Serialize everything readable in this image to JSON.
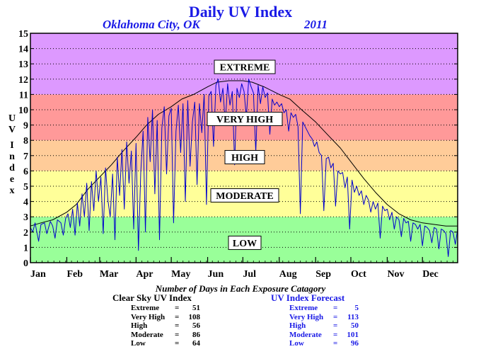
{
  "header": {
    "title": "Daily UV Index",
    "location": "Oklahoma City, OK",
    "year": "2011"
  },
  "y_axis_label": [
    "U",
    "V",
    "I",
    "n",
    "d",
    "e",
    "x"
  ],
  "section_title": "Number of Days in Each Exposure Catagory",
  "clear_sky": {
    "title": "Clear Sky UV Index",
    "rows": [
      {
        "label": "Extreme",
        "value": "51"
      },
      {
        "label": "Very High",
        "value": "108"
      },
      {
        "label": "High",
        "value": "56"
      },
      {
        "label": "Moderate",
        "value": "86"
      },
      {
        "label": "Low",
        "value": "64"
      }
    ]
  },
  "forecast": {
    "title": "UV Index Forecast",
    "rows": [
      {
        "label": "Extreme",
        "value": "5"
      },
      {
        "label": "Very High",
        "value": "113"
      },
      {
        "label": "High",
        "value": "50"
      },
      {
        "label": "Moderate",
        "value": "101"
      },
      {
        "label": "Low",
        "value": "96"
      }
    ]
  },
  "colors": {
    "low": "#99ff99",
    "moderate": "#ffff99",
    "high": "#ffcc99",
    "very_high": "#ff9999",
    "extreme": "#dd99ff",
    "clear_sky_line": "#000000",
    "forecast_line": "#0000cc",
    "title_color": "#1a1ae6"
  },
  "chart_data": {
    "type": "line",
    "title": "Daily UV Index",
    "xlabel": "",
    "ylabel": "UV Index",
    "ylim": [
      0,
      15
    ],
    "xlim": [
      1,
      365
    ],
    "yticks": [
      0,
      1,
      2,
      3,
      4,
      5,
      6,
      7,
      8,
      9,
      10,
      11,
      12,
      13,
      14,
      15
    ],
    "months": [
      {
        "label": "Jan",
        "start_day": 1
      },
      {
        "label": "Feb",
        "start_day": 32
      },
      {
        "label": "Mar",
        "start_day": 60
      },
      {
        "label": "Apr",
        "start_day": 91
      },
      {
        "label": "May",
        "start_day": 121
      },
      {
        "label": "Jun",
        "start_day": 152
      },
      {
        "label": "Jul",
        "start_day": 182
      },
      {
        "label": "Aug",
        "start_day": 213
      },
      {
        "label": "Sep",
        "start_day": 244
      },
      {
        "label": "Oct",
        "start_day": 274
      },
      {
        "label": "Nov",
        "start_day": 305
      },
      {
        "label": "Dec",
        "start_day": 335
      }
    ],
    "grid": true,
    "bands": [
      {
        "name": "LOW",
        "from": 0,
        "to": 3
      },
      {
        "name": "MODERATE",
        "from": 3,
        "to": 6
      },
      {
        "name": "HIGH",
        "from": 6,
        "to": 8
      },
      {
        "name": "VERY HIGH",
        "from": 8,
        "to": 11
      },
      {
        "name": "EXTREME",
        "from": 11,
        "to": 15
      }
    ],
    "band_labels": [
      {
        "text": "EXTREME",
        "y": 12.8
      },
      {
        "text": "VERY HIGH",
        "y": 9.4
      },
      {
        "text": "HIGH",
        "y": 6.9
      },
      {
        "text": "MODERATE",
        "y": 4.4
      },
      {
        "text": "LOW",
        "y": 1.3
      }
    ],
    "series": [
      {
        "name": "Clear Sky UV Index",
        "color": "#000000",
        "points": [
          [
            1,
            2.4
          ],
          [
            10,
            2.6
          ],
          [
            20,
            2.8
          ],
          [
            32,
            3.3
          ],
          [
            40,
            3.8
          ],
          [
            50,
            4.8
          ],
          [
            60,
            5.6
          ],
          [
            70,
            6.4
          ],
          [
            80,
            7.3
          ],
          [
            91,
            8.2
          ],
          [
            100,
            9.0
          ],
          [
            110,
            9.7
          ],
          [
            121,
            10.2
          ],
          [
            130,
            10.7
          ],
          [
            140,
            11.0
          ],
          [
            152,
            11.5
          ],
          [
            160,
            11.8
          ],
          [
            170,
            11.9
          ],
          [
            182,
            11.9
          ],
          [
            190,
            11.8
          ],
          [
            200,
            11.5
          ],
          [
            213,
            11.0
          ],
          [
            222,
            10.7
          ],
          [
            232,
            10.0
          ],
          [
            244,
            9.2
          ],
          [
            255,
            8.3
          ],
          [
            265,
            7.5
          ],
          [
            274,
            6.6
          ],
          [
            285,
            5.5
          ],
          [
            295,
            4.6
          ],
          [
            305,
            3.8
          ],
          [
            315,
            3.2
          ],
          [
            325,
            2.8
          ],
          [
            335,
            2.6
          ],
          [
            345,
            2.5
          ],
          [
            355,
            2.4
          ],
          [
            365,
            2.4
          ]
        ]
      },
      {
        "name": "UV Index Forecast",
        "color": "#0000cc",
        "points": [
          [
            1,
            2.3
          ],
          [
            3,
            2.0
          ],
          [
            5,
            2.6
          ],
          [
            8,
            1.4
          ],
          [
            10,
            2.5
          ],
          [
            13,
            2.6
          ],
          [
            15,
            1.9
          ],
          [
            18,
            2.7
          ],
          [
            20,
            2.4
          ],
          [
            22,
            1.6
          ],
          [
            24,
            2.8
          ],
          [
            27,
            2.6
          ],
          [
            29,
            1.8
          ],
          [
            31,
            2.9
          ],
          [
            33,
            3.2
          ],
          [
            35,
            2.3
          ],
          [
            37,
            3.5
          ],
          [
            39,
            1.8
          ],
          [
            41,
            3.9
          ],
          [
            43,
            2.4
          ],
          [
            45,
            4.5
          ],
          [
            47,
            3.0
          ],
          [
            49,
            5.2
          ],
          [
            51,
            2.1
          ],
          [
            53,
            5.3
          ],
          [
            55,
            3.4
          ],
          [
            57,
            6.0
          ],
          [
            59,
            4.0
          ],
          [
            61,
            5.6
          ],
          [
            63,
            1.9
          ],
          [
            65,
            6.2
          ],
          [
            67,
            4.1
          ],
          [
            69,
            3.0
          ],
          [
            71,
            5.8
          ],
          [
            73,
            1.5
          ],
          [
            75,
            6.9
          ],
          [
            77,
            4.4
          ],
          [
            79,
            7.4
          ],
          [
            81,
            3.5
          ],
          [
            83,
            7.9
          ],
          [
            85,
            5.2
          ],
          [
            87,
            7.3
          ],
          [
            89,
            2.2
          ],
          [
            91,
            7.8
          ],
          [
            93,
            0.8
          ],
          [
            95,
            5.9
          ],
          [
            97,
            8.6
          ],
          [
            99,
            2.0
          ],
          [
            101,
            9.5
          ],
          [
            103,
            6.6
          ],
          [
            105,
            10.0
          ],
          [
            107,
            4.5
          ],
          [
            109,
            9.3
          ],
          [
            111,
            1.5
          ],
          [
            113,
            8.8
          ],
          [
            115,
            10.2
          ],
          [
            117,
            5.8
          ],
          [
            119,
            9.6
          ],
          [
            121,
            10.1
          ],
          [
            123,
            2.6
          ],
          [
            125,
            8.6
          ],
          [
            127,
            10.3
          ],
          [
            129,
            7.2
          ],
          [
            131,
            10.4
          ],
          [
            133,
            4.0
          ],
          [
            135,
            10.6
          ],
          [
            137,
            6.3
          ],
          [
            139,
            9.2
          ],
          [
            141,
            10.5
          ],
          [
            143,
            5.1
          ],
          [
            145,
            10.4
          ],
          [
            147,
            8.5
          ],
          [
            149,
            11.0
          ],
          [
            151,
            3.8
          ],
          [
            153,
            10.9
          ],
          [
            155,
            11.2
          ],
          [
            157,
            7.6
          ],
          [
            159,
            11.6
          ],
          [
            161,
            12.0
          ],
          [
            163,
            10.5
          ],
          [
            165,
            11.4
          ],
          [
            167,
            9.1
          ],
          [
            169,
            11.7
          ],
          [
            171,
            10.3
          ],
          [
            173,
            11.2
          ],
          [
            175,
            6.4
          ],
          [
            177,
            11.4
          ],
          [
            179,
            10.8
          ],
          [
            181,
            11.7
          ],
          [
            183,
            11.2
          ],
          [
            185,
            9.5
          ],
          [
            187,
            12.0
          ],
          [
            189,
            11.5
          ],
          [
            191,
            11.1
          ],
          [
            193,
            7.2
          ],
          [
            195,
            11.6
          ],
          [
            197,
            10.4
          ],
          [
            199,
            11.5
          ],
          [
            201,
            10.8
          ],
          [
            203,
            11.1
          ],
          [
            205,
            8.4
          ],
          [
            207,
            10.7
          ],
          [
            209,
            10.3
          ],
          [
            211,
            10.5
          ],
          [
            213,
            10.2
          ],
          [
            215,
            10.4
          ],
          [
            217,
            9.8
          ],
          [
            219,
            10.0
          ],
          [
            221,
            8.6
          ],
          [
            223,
            9.8
          ],
          [
            225,
            9.5
          ],
          [
            227,
            9.7
          ],
          [
            229,
            8.9
          ],
          [
            231,
            3.2
          ],
          [
            233,
            9.2
          ],
          [
            235,
            8.9
          ],
          [
            237,
            8.6
          ],
          [
            239,
            8.3
          ],
          [
            241,
            8.1
          ],
          [
            243,
            7.6
          ],
          [
            245,
            7.9
          ],
          [
            247,
            7.2
          ],
          [
            249,
            7.0
          ],
          [
            251,
            3.4
          ],
          [
            253,
            6.8
          ],
          [
            255,
            6.9
          ],
          [
            257,
            6.2
          ],
          [
            259,
            6.5
          ],
          [
            261,
            3.7
          ],
          [
            263,
            6.0
          ],
          [
            265,
            5.8
          ],
          [
            267,
            5.9
          ],
          [
            269,
            4.9
          ],
          [
            271,
            5.6
          ],
          [
            273,
            2.2
          ],
          [
            275,
            5.4
          ],
          [
            277,
            4.6
          ],
          [
            279,
            5.0
          ],
          [
            281,
            4.4
          ],
          [
            283,
            4.7
          ],
          [
            285,
            3.8
          ],
          [
            287,
            4.4
          ],
          [
            289,
            4.1
          ],
          [
            291,
            3.3
          ],
          [
            293,
            4.0
          ],
          [
            295,
            3.5
          ],
          [
            297,
            3.9
          ],
          [
            299,
            1.6
          ],
          [
            301,
            3.7
          ],
          [
            303,
            3.4
          ],
          [
            305,
            3.5
          ],
          [
            307,
            2.8
          ],
          [
            309,
            3.3
          ],
          [
            311,
            2.2
          ],
          [
            313,
            3.0
          ],
          [
            315,
            2.8
          ],
          [
            317,
            1.7
          ],
          [
            319,
            2.9
          ],
          [
            321,
            2.6
          ],
          [
            323,
            2.7
          ],
          [
            325,
            1.4
          ],
          [
            327,
            2.6
          ],
          [
            329,
            2.5
          ],
          [
            331,
            2.2
          ],
          [
            333,
            2.5
          ],
          [
            335,
            1.1
          ],
          [
            337,
            2.4
          ],
          [
            339,
            2.3
          ],
          [
            341,
            2.1
          ],
          [
            343,
            1.3
          ],
          [
            345,
            2.3
          ],
          [
            347,
            2.2
          ],
          [
            349,
            0.9
          ],
          [
            351,
            2.2
          ],
          [
            353,
            2.1
          ],
          [
            355,
            1.9
          ],
          [
            357,
            0.4
          ],
          [
            359,
            2.1
          ],
          [
            361,
            2.0
          ],
          [
            363,
            1.2
          ],
          [
            365,
            2.2
          ]
        ]
      }
    ]
  }
}
